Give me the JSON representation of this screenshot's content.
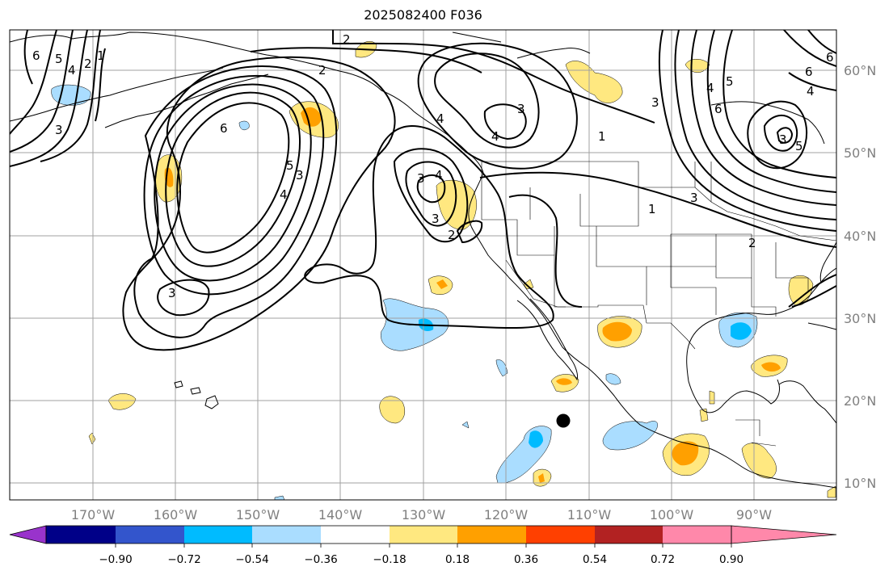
{
  "title": "2025082400 F036",
  "map": {
    "lon_ticks": [
      "170°W",
      "160°W",
      "150°W",
      "140°W",
      "130°W",
      "120°W",
      "110°W",
      "100°W",
      "90°W"
    ],
    "lat_ticks": [
      "60°N",
      "50°N",
      "40°N",
      "30°N",
      "20°N",
      "10°N"
    ],
    "contour_labels": [
      "6",
      "5",
      "4",
      "2",
      "1",
      "3",
      "2",
      "2",
      "6",
      "3",
      "4",
      "5",
      "3",
      "3",
      "4",
      "3",
      "3",
      "2",
      "4",
      "4",
      "1",
      "1",
      "3",
      "4",
      "5",
      "6",
      "6",
      "5",
      "4",
      "3",
      "6",
      "3",
      "2"
    ]
  },
  "colorbar": {
    "ticks": [
      "−0.90",
      "−0.72",
      "−0.54",
      "−0.36",
      "−0.18",
      "0.18",
      "0.36",
      "0.54",
      "0.72",
      "0.90"
    ],
    "colors": [
      "#9933cc",
      "#000088",
      "#3355cc",
      "#00bbff",
      "#aaddff",
      "#ffffff",
      "#ffe880",
      "#ffa000",
      "#ff4000",
      "#b22222",
      "#ff88aa"
    ]
  },
  "colors": {
    "light_yellow": "#ffe880",
    "orange": "#ffa000",
    "light_blue": "#aaddff",
    "cyan": "#00bbff"
  }
}
